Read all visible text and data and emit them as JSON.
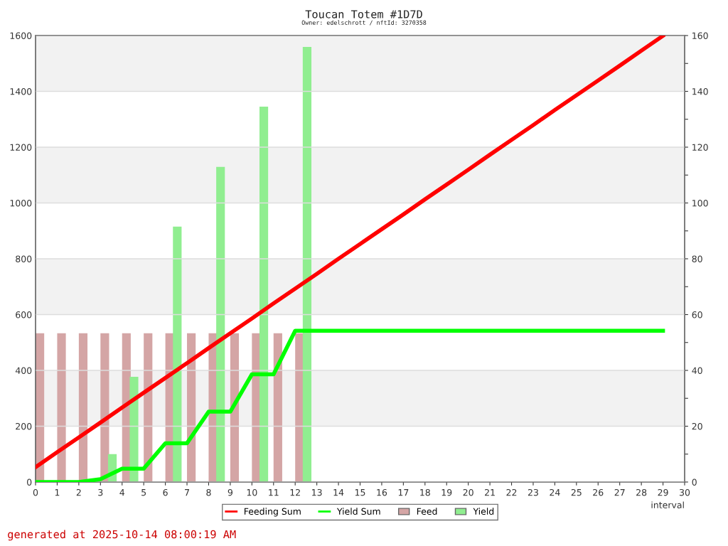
{
  "chart_data": {
    "type": "line",
    "title": "Toucan Totem #1D7D",
    "subtitle": "Owner: edelschrott / nftId: 3270358",
    "xlabel": "interval",
    "annotations": [
      "generated at 2025-10-14 08:00:19 AM"
    ],
    "x": [
      0,
      1,
      2,
      3,
      4,
      5,
      6,
      7,
      8,
      9,
      10,
      11,
      12,
      13,
      14,
      15,
      16,
      17,
      18,
      19,
      20,
      21,
      22,
      23,
      24,
      25,
      26,
      27,
      28,
      29
    ],
    "series": [
      {
        "name": "Feeding Sum",
        "color": "#ff0000",
        "values": [
          53,
          107,
          160,
          213,
          267,
          320,
          373,
          426,
          480,
          533,
          586,
          640,
          693,
          746,
          800,
          853,
          906,
          959,
          1013,
          1066,
          1119,
          1173,
          1226,
          1279,
          1333,
          1386,
          1439,
          1492,
          1546,
          1599
        ]
      },
      {
        "name": "Yield Sum",
        "color": "#00ff00",
        "values": [
          0,
          0,
          0,
          10,
          48,
          48,
          139,
          139,
          252,
          252,
          386,
          386,
          542,
          542,
          542,
          542,
          542,
          542,
          542,
          542,
          542,
          542,
          542,
          542,
          542,
          542,
          542,
          542,
          542,
          542
        ]
      },
      {
        "name": "Feed",
        "type": "bar",
        "axis": "y2",
        "color": "#d4a5a5",
        "x": [
          0.2,
          1.2,
          2.2,
          3.2,
          4.2,
          5.2,
          6.2,
          7.2,
          8.2,
          9.2,
          10.2,
          11.2,
          12.2
        ],
        "values": [
          53.3,
          53.3,
          53.3,
          53.3,
          53.3,
          53.3,
          53.3,
          53.3,
          53.3,
          53.3,
          53.3,
          53.3,
          53.3
        ]
      },
      {
        "name": "Yield",
        "type": "bar",
        "axis": "y2",
        "color": "#90ee90",
        "x": [
          3.55,
          4.55,
          6.55,
          8.55,
          10.55,
          12.55
        ],
        "values": [
          10,
          37.7,
          91.5,
          112.9,
          134.5,
          155.9
        ]
      }
    ],
    "xlim": [
      0,
      30
    ],
    "xticks": [
      0,
      1,
      2,
      3,
      4,
      5,
      6,
      7,
      8,
      9,
      10,
      11,
      12,
      13,
      14,
      15,
      16,
      17,
      18,
      19,
      20,
      21,
      22,
      23,
      24,
      25,
      26,
      27,
      28,
      29,
      30
    ],
    "ylim": [
      0,
      1600
    ],
    "yticks": [
      0,
      200,
      400,
      600,
      800,
      1000,
      1200,
      1400,
      1600
    ],
    "y2lim": [
      0,
      160
    ],
    "y2ticks": [
      0,
      {
        "value": 10,
        "label": null
      },
      20,
      {
        "value": 30,
        "label": null
      },
      40,
      {
        "value": 50,
        "label": null
      },
      60,
      {
        "value": 70,
        "label": null
      },
      80,
      {
        "value": 90,
        "label": null
      },
      100,
      {
        "value": 110,
        "label": null
      },
      120,
      {
        "value": 130,
        "label": null
      },
      140,
      {
        "value": 150,
        "label": null
      },
      160
    ],
    "grid": "y",
    "legend": "bottom",
    "marker": "none",
    "line_style": "solid"
  }
}
